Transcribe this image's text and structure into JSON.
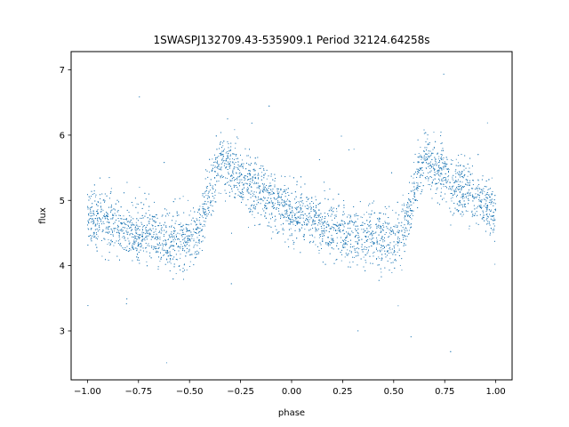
{
  "chart_data": {
    "type": "scatter",
    "title": "1SWASPJ132709.43-535909.1 Period 32124.64258s",
    "xlabel": "phase",
    "ylabel": "flux",
    "xlim": [
      -1.08,
      1.08
    ],
    "ylim": [
      2.25,
      7.28
    ],
    "xticks": [
      -1.0,
      -0.75,
      -0.5,
      -0.25,
      0.0,
      0.25,
      0.5,
      0.75,
      1.0
    ],
    "xtick_labels": [
      "−1.00",
      "−0.75",
      "−0.50",
      "−0.25",
      "0.00",
      "0.25",
      "0.50",
      "0.75",
      "1.00"
    ],
    "yticks": [
      3,
      4,
      5,
      6,
      7
    ],
    "ytick_labels": [
      "3",
      "4",
      "5",
      "6",
      "7"
    ],
    "grid": false,
    "marker_color": "#1f77b4",
    "light_curve_profile": {
      "phase": [
        -1.0,
        -0.9,
        -0.8,
        -0.7,
        -0.6,
        -0.5,
        -0.45,
        -0.4,
        -0.35,
        -0.3,
        -0.2,
        -0.1,
        0.0,
        0.1,
        0.2,
        0.3,
        0.4,
        0.5,
        0.55,
        0.6,
        0.65,
        0.7,
        0.8,
        0.9,
        1.0
      ],
      "flux": [
        4.75,
        4.65,
        4.55,
        4.48,
        4.42,
        4.4,
        4.55,
        5.1,
        5.68,
        5.5,
        5.25,
        5.0,
        4.82,
        4.68,
        4.57,
        4.48,
        4.42,
        4.4,
        4.55,
        5.1,
        5.68,
        5.5,
        5.25,
        5.0,
        4.82
      ],
      "scatter_sigma": 0.22
    }
  }
}
